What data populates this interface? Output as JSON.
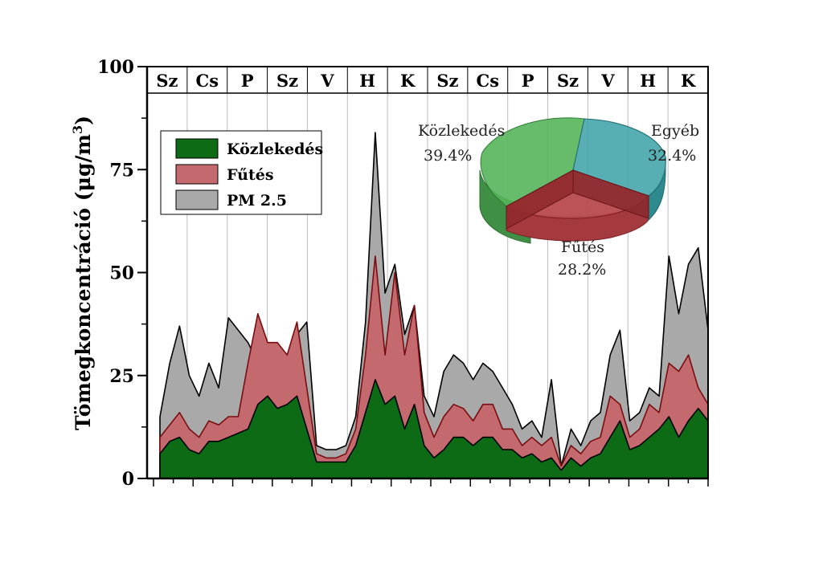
{
  "chart_data": {
    "type": "area",
    "ylabel": "Tömegkoncentráció (μg/m",
    "ylabel_sup": "3",
    "ylabel_end": ")",
    "ylim": [
      0,
      100
    ],
    "yticks": [
      "0",
      "25",
      "50",
      "75",
      "100"
    ],
    "ytick_values": [
      0,
      25,
      50,
      75,
      100
    ],
    "n_days": 14,
    "days": [
      "Sz",
      "Cs",
      "P",
      "Sz",
      "V",
      "H",
      "K",
      "Sz",
      "Cs",
      "P",
      "Sz",
      "V",
      "H",
      "K"
    ],
    "grid": "vertical day separators",
    "legend_position": "top-left",
    "legend": [
      "Közlekedés",
      "Fűtés",
      "PM 2.5"
    ],
    "colors": {
      "kozlekedes": "#0c6b14",
      "futes": "#c46a6e",
      "pm25": "#a9a9a9",
      "outline": "#000000",
      "futes_line": "#7a0d10"
    },
    "x": [
      0,
      0.25,
      0.5,
      0.75,
      1,
      1.25,
      1.5,
      1.75,
      2,
      2.25,
      2.5,
      2.75,
      3,
      3.25,
      3.5,
      3.75,
      4,
      4.25,
      4.5,
      4.75,
      5,
      5.25,
      5.5,
      5.75,
      6,
      6.25,
      6.5,
      6.75,
      7,
      7.25,
      7.5,
      7.75,
      8,
      8.25,
      8.5,
      8.75,
      9,
      9.25,
      9.5,
      9.75,
      10,
      10.25,
      10.5,
      10.75,
      11,
      11.25,
      11.5,
      11.75,
      12,
      12.25,
      12.5,
      12.75,
      13,
      13.25,
      13.5,
      13.75,
      14
    ],
    "series": [
      {
        "name": "PM 2.5",
        "values": [
          15,
          28,
          37,
          25,
          20,
          28,
          22,
          39,
          36,
          33,
          28,
          30,
          25,
          30,
          35,
          38,
          8,
          7,
          7,
          8,
          15,
          38,
          84,
          45,
          52,
          35,
          42,
          20,
          15,
          26,
          30,
          28,
          24,
          28,
          26,
          22,
          18,
          12,
          14,
          10,
          24,
          3,
          12,
          8,
          14,
          16,
          30,
          36,
          14,
          16,
          22,
          20,
          54,
          40,
          52,
          56,
          36
        ]
      },
      {
        "name": "Fűtés",
        "values": [
          10,
          13,
          16,
          12,
          10,
          14,
          13,
          15,
          15,
          28,
          40,
          33,
          33,
          30,
          38,
          22,
          6,
          5,
          5,
          6,
          12,
          30,
          54,
          30,
          50,
          30,
          42,
          16,
          10,
          15,
          18,
          17,
          14,
          18,
          18,
          12,
          12,
          8,
          10,
          8,
          10,
          3,
          8,
          6,
          9,
          10,
          20,
          18,
          10,
          12,
          18,
          16,
          28,
          26,
          30,
          22,
          18
        ]
      },
      {
        "name": "Közlekedés",
        "values": [
          6,
          9,
          10,
          7,
          6,
          9,
          9,
          10,
          11,
          12,
          18,
          20,
          17,
          18,
          20,
          12,
          4,
          4,
          4,
          4,
          8,
          16,
          24,
          18,
          20,
          12,
          18,
          8,
          5,
          7,
          10,
          10,
          8,
          10,
          10,
          7,
          7,
          5,
          6,
          4,
          5,
          2,
          5,
          3,
          5,
          6,
          10,
          14,
          7,
          8,
          10,
          12,
          15,
          10,
          14,
          17,
          14
        ]
      }
    ],
    "pie": {
      "type": "pie",
      "slices": [
        {
          "label": "Közlekedés",
          "percent": "39.4%",
          "value": 39.4,
          "color": "#55b55a"
        },
        {
          "label": "Egyéb",
          "percent": "32.4%",
          "value": 32.4,
          "color": "#46a6ab"
        },
        {
          "label": "Fűtés",
          "percent": "28.2%",
          "value": 28.2,
          "color": "#b84a4e"
        }
      ]
    }
  }
}
